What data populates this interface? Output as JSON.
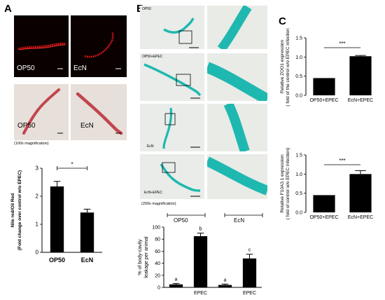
{
  "panels": {
    "a": "A",
    "b": "B",
    "c": "C"
  },
  "panel_a": {
    "fluor_left": "OP50",
    "fluor_right": "EcN",
    "stain_left": "OP50",
    "stain_right": "EcN",
    "magnification": "(100x magnification)"
  },
  "panel_b": {
    "tiles": [
      "OP50",
      "OP50+EPEC",
      "EcN",
      "EcN+EPEC"
    ],
    "magnification": "(200x magnification)",
    "group_labels": [
      "OP50",
      "EcN"
    ]
  },
  "colors": {
    "fluor_bg": "#0b0000",
    "fluor_worm": "#d11414",
    "stain_worm": "#c2454d",
    "teal": "#1fb8b1",
    "bar": "#000000"
  },
  "chart_data": [
    {
      "type": "bar",
      "panel": "A",
      "categories": [
        "OP50",
        "EcN"
      ],
      "values": [
        2.35,
        1.42
      ],
      "errors": [
        0.18,
        0.12
      ],
      "ylabel": "Nile red/Oil Red\n(Fold change over control w/o EPEC)",
      "ylim": [
        0,
        3
      ],
      "yticks": [
        "0",
        "1",
        "2",
        "3"
      ],
      "significance": "*"
    },
    {
      "type": "bar",
      "panel": "B",
      "categories": [
        "",
        "EPEC",
        "",
        "EPEC"
      ],
      "values": [
        5,
        85,
        4,
        48
      ],
      "errors": [
        1.5,
        5,
        1.5,
        7
      ],
      "letters": [
        "a",
        "b",
        "a",
        "c"
      ],
      "ylabel": "% of body-cavity\nleakage per animal",
      "ylim": [
        0,
        100
      ],
      "yticks": [
        "0",
        "20",
        "40",
        "60",
        "80",
        "100"
      ]
    },
    {
      "type": "bar",
      "panel": "C",
      "categories": [
        "OP50+EPEC",
        "EcN+EPEC"
      ],
      "values": [
        0.45,
        1.02
      ],
      "errors": [
        0,
        0.02
      ],
      "ylabel": "Relative ZOO1 expression\n( fold of the control w/o EPEC infection)",
      "ylim": [
        0,
        1.5
      ],
      "yticks": [
        "0.0",
        "0.5",
        "1.0",
        "1.5"
      ],
      "significance": "***"
    },
    {
      "type": "bar",
      "panel": "C",
      "categories": [
        "OP50+EPEC",
        "EcN+EPEC"
      ],
      "values": [
        0.45,
        1.0
      ],
      "errors": [
        0,
        0.09
      ],
      "ylabel": "Relative F10A3.1 expression\n( fold of control w/o EPEC infection)",
      "ylim": [
        0,
        1.5
      ],
      "yticks": [
        "0.0",
        "0.5",
        "1.0",
        "1.5"
      ],
      "significance": "***"
    }
  ]
}
